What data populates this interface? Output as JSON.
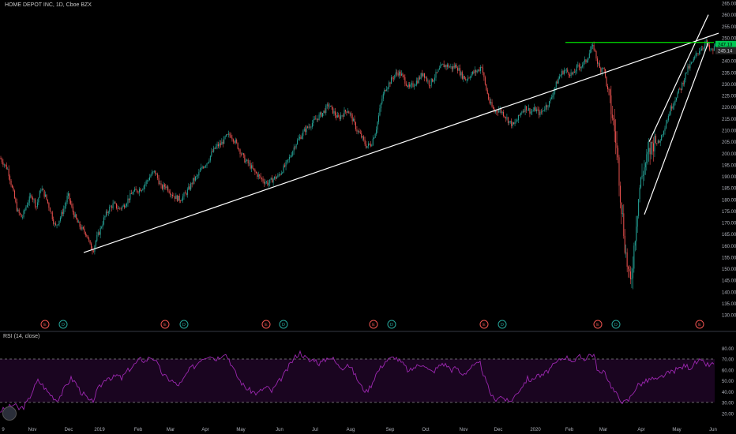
{
  "header": {
    "title": "HOME DEPOT INC, 1D, Cboe BZX"
  },
  "rsi_panel": {
    "title": "RSI (14, close)"
  },
  "colors": {
    "up": "#26a69a",
    "down": "#ef5350",
    "line": "#ffffff",
    "resistance": "#00e600",
    "rsi": "#9c27b0",
    "rsi_fill": "#1a0520"
  },
  "chart_data": {
    "type": "candlestick",
    "title": "HOME DEPOT INC, 1D, Cboe BZX",
    "y_axis": {
      "ylim": [
        128,
        265
      ],
      "ticks": [
        265,
        260,
        255,
        250,
        245,
        240,
        235,
        230,
        225,
        220,
        215,
        210,
        205,
        200,
        195,
        190,
        185,
        180,
        175,
        170,
        165,
        160,
        155,
        150,
        145,
        140,
        135,
        130
      ]
    },
    "last_price_labels": [
      "247.13",
      "245.14"
    ],
    "x_axis": {
      "ticks": [
        "9",
        "Nov",
        "Dec",
        "2019",
        "Feb",
        "Mar",
        "Apr",
        "May",
        "Jun",
        "Jul",
        "Aug",
        "Sep",
        "Oct",
        "Nov",
        "Dec",
        "2020",
        "Feb",
        "Mar",
        "Apr",
        "May",
        "Jun"
      ]
    },
    "price_path": [
      [
        0,
        198
      ],
      [
        4,
        196
      ],
      [
        10,
        193
      ],
      [
        16,
        184
      ],
      [
        22,
        175
      ],
      [
        28,
        172
      ],
      [
        34,
        178
      ],
      [
        40,
        182
      ],
      [
        46,
        177
      ],
      [
        52,
        185
      ],
      [
        58,
        181
      ],
      [
        64,
        175
      ],
      [
        70,
        168
      ],
      [
        76,
        172
      ],
      [
        82,
        177
      ],
      [
        86,
        182
      ],
      [
        92,
        175
      ],
      [
        98,
        170
      ],
      [
        104,
        167
      ],
      [
        110,
        165
      ],
      [
        114,
        160
      ],
      [
        118,
        158
      ],
      [
        122,
        163
      ],
      [
        126,
        166
      ],
      [
        132,
        172
      ],
      [
        138,
        176
      ],
      [
        144,
        178
      ],
      [
        150,
        176
      ],
      [
        156,
        177
      ],
      [
        162,
        180
      ],
      [
        168,
        183
      ],
      [
        174,
        184
      ],
      [
        180,
        185
      ],
      [
        186,
        188
      ],
      [
        192,
        191
      ],
      [
        196,
        192
      ],
      [
        200,
        189
      ],
      [
        204,
        185
      ],
      [
        210,
        186
      ],
      [
        216,
        183
      ],
      [
        222,
        181
      ],
      [
        228,
        180
      ],
      [
        234,
        182
      ],
      [
        240,
        185
      ],
      [
        244,
        188
      ],
      [
        250,
        190
      ],
      [
        256,
        194
      ],
      [
        262,
        196
      ],
      [
        268,
        200
      ],
      [
        274,
        203
      ],
      [
        280,
        204
      ],
      [
        286,
        207
      ],
      [
        292,
        208
      ],
      [
        298,
        205
      ],
      [
        304,
        201
      ],
      [
        310,
        197
      ],
      [
        316,
        195
      ],
      [
        322,
        192
      ],
      [
        328,
        190
      ],
      [
        334,
        188
      ],
      [
        340,
        187
      ],
      [
        346,
        189
      ],
      [
        352,
        190
      ],
      [
        356,
        192
      ],
      [
        362,
        195
      ],
      [
        368,
        199
      ],
      [
        374,
        204
      ],
      [
        380,
        207
      ],
      [
        386,
        210
      ],
      [
        392,
        212
      ],
      [
        398,
        214
      ],
      [
        404,
        216
      ],
      [
        410,
        218
      ],
      [
        416,
        221
      ],
      [
        422,
        218
      ],
      [
        428,
        215
      ],
      [
        434,
        217
      ],
      [
        440,
        219
      ],
      [
        446,
        215
      ],
      [
        452,
        210
      ],
      [
        458,
        207
      ],
      [
        464,
        203
      ],
      [
        470,
        204
      ],
      [
        476,
        210
      ],
      [
        480,
        217
      ],
      [
        484,
        224
      ],
      [
        488,
        228
      ],
      [
        492,
        230
      ],
      [
        496,
        232
      ],
      [
        500,
        234
      ],
      [
        504,
        235
      ],
      [
        508,
        234
      ],
      [
        512,
        232
      ],
      [
        518,
        228
      ],
      [
        524,
        230
      ],
      [
        530,
        232
      ],
      [
        536,
        235
      ],
      [
        540,
        232
      ],
      [
        544,
        230
      ],
      [
        548,
        232
      ],
      [
        552,
        234
      ],
      [
        556,
        236
      ],
      [
        560,
        238
      ],
      [
        566,
        238
      ],
      [
        572,
        237
      ],
      [
        578,
        238
      ],
      [
        584,
        234
      ],
      [
        590,
        232
      ],
      [
        596,
        234
      ],
      [
        600,
        235
      ],
      [
        606,
        236
      ],
      [
        610,
        238
      ],
      [
        614,
        230
      ],
      [
        620,
        222
      ],
      [
        626,
        218
      ],
      [
        632,
        219
      ],
      [
        638,
        217
      ],
      [
        644,
        214
      ],
      [
        650,
        212
      ],
      [
        656,
        215
      ],
      [
        660,
        218
      ],
      [
        666,
        220
      ],
      [
        672,
        218
      ],
      [
        678,
        219
      ],
      [
        684,
        217
      ],
      [
        690,
        220
      ],
      [
        696,
        222
      ],
      [
        702,
        228
      ],
      [
        708,
        233
      ],
      [
        714,
        236
      ],
      [
        720,
        235
      ],
      [
        726,
        234
      ],
      [
        730,
        237
      ],
      [
        736,
        238
      ],
      [
        742,
        240
      ],
      [
        748,
        245
      ],
      [
        752,
        246
      ],
      [
        756,
        240
      ],
      [
        760,
        236
      ],
      [
        764,
        238
      ],
      [
        768,
        230
      ],
      [
        772,
        222
      ],
      [
        776,
        215
      ],
      [
        780,
        205
      ],
      [
        783,
        195
      ],
      [
        786,
        180
      ],
      [
        789,
        170
      ],
      [
        792,
        158
      ],
      [
        795,
        150
      ],
      [
        798,
        142
      ],
      [
        800,
        148
      ],
      [
        803,
        160
      ],
      [
        806,
        172
      ],
      [
        810,
        185
      ],
      [
        814,
        192
      ],
      [
        818,
        196
      ],
      [
        822,
        200
      ],
      [
        826,
        204
      ],
      [
        830,
        206
      ],
      [
        834,
        204
      ],
      [
        838,
        208
      ],
      [
        842,
        212
      ],
      [
        846,
        216
      ],
      [
        850,
        220
      ],
      [
        854,
        223
      ],
      [
        858,
        226
      ],
      [
        862,
        228
      ],
      [
        866,
        232
      ],
      [
        870,
        236
      ],
      [
        874,
        238
      ],
      [
        878,
        240
      ],
      [
        882,
        243
      ],
      [
        886,
        245
      ],
      [
        890,
        246
      ],
      [
        894,
        248
      ],
      [
        898,
        245
      ],
      [
        902,
        244
      ],
      [
        906,
        247
      ]
    ],
    "trendlines": [
      {
        "x1": 106,
        "y1": 157,
        "x2": 910,
        "y2": 252
      },
      {
        "x1": 816,
        "y1": 173.5,
        "x2": 897,
        "y2": 248
      },
      {
        "x1": 822,
        "y1": 205,
        "x2": 897,
        "y2": 260
      }
    ],
    "resistance": {
      "value": 248,
      "x1": 716,
      "x2": 904
    },
    "earnings_markers": [
      {
        "x": 57,
        "label": "E",
        "type": "E"
      },
      {
        "x": 80,
        "label": "D",
        "type": "D"
      },
      {
        "x": 209,
        "label": "E",
        "type": "E"
      },
      {
        "x": 233,
        "label": "D",
        "type": "D"
      },
      {
        "x": 337,
        "label": "E",
        "type": "E"
      },
      {
        "x": 359,
        "label": "D",
        "type": "D"
      },
      {
        "x": 473,
        "label": "E",
        "type": "E"
      },
      {
        "x": 496,
        "label": "D",
        "type": "D"
      },
      {
        "x": 613,
        "label": "E",
        "type": "E"
      },
      {
        "x": 636,
        "label": "D",
        "type": "D"
      },
      {
        "x": 757,
        "label": "E",
        "type": "E"
      },
      {
        "x": 780,
        "label": "D",
        "type": "D"
      },
      {
        "x": 886,
        "label": "E",
        "type": "E"
      }
    ],
    "rsi": {
      "ylim": [
        14,
        86
      ],
      "ticks": [
        80,
        70,
        60,
        50,
        40,
        30,
        20
      ],
      "upper": 70,
      "lower": 30,
      "path": [
        [
          0,
          22
        ],
        [
          6,
          24
        ],
        [
          12,
          26
        ],
        [
          18,
          28
        ],
        [
          24,
          24
        ],
        [
          30,
          26
        ],
        [
          36,
          32
        ],
        [
          42,
          42
        ],
        [
          48,
          50
        ],
        [
          54,
          46
        ],
        [
          60,
          40
        ],
        [
          66,
          36
        ],
        [
          72,
          32
        ],
        [
          78,
          38
        ],
        [
          84,
          46
        ],
        [
          90,
          52
        ],
        [
          96,
          48
        ],
        [
          102,
          40
        ],
        [
          108,
          36
        ],
        [
          114,
          30
        ],
        [
          118,
          32
        ],
        [
          124,
          42
        ],
        [
          130,
          48
        ],
        [
          136,
          54
        ],
        [
          142,
          52
        ],
        [
          148,
          55
        ],
        [
          154,
          52
        ],
        [
          160,
          58
        ],
        [
          166,
          62
        ],
        [
          172,
          66
        ],
        [
          178,
          70
        ],
        [
          184,
          68
        ],
        [
          190,
          72
        ],
        [
          196,
          70
        ],
        [
          200,
          64
        ],
        [
          206,
          56
        ],
        [
          212,
          52
        ],
        [
          218,
          50
        ],
        [
          224,
          46
        ],
        [
          230,
          48
        ],
        [
          236,
          56
        ],
        [
          242,
          62
        ],
        [
          248,
          64
        ],
        [
          254,
          70
        ],
        [
          260,
          72
        ],
        [
          266,
          74
        ],
        [
          272,
          70
        ],
        [
          278,
          72
        ],
        [
          284,
          76
        ],
        [
          290,
          70
        ],
        [
          296,
          60
        ],
        [
          302,
          52
        ],
        [
          308,
          46
        ],
        [
          314,
          42
        ],
        [
          320,
          40
        ],
        [
          326,
          38
        ],
        [
          332,
          42
        ],
        [
          338,
          44
        ],
        [
          344,
          40
        ],
        [
          350,
          46
        ],
        [
          356,
          52
        ],
        [
          362,
          58
        ],
        [
          368,
          66
        ],
        [
          374,
          72
        ],
        [
          380,
          76
        ],
        [
          386,
          72
        ],
        [
          392,
          68
        ],
        [
          398,
          70
        ],
        [
          404,
          66
        ],
        [
          410,
          68
        ],
        [
          416,
          72
        ],
        [
          422,
          70
        ],
        [
          428,
          64
        ],
        [
          434,
          62
        ],
        [
          440,
          66
        ],
        [
          446,
          60
        ],
        [
          452,
          52
        ],
        [
          458,
          44
        ],
        [
          464,
          40
        ],
        [
          470,
          46
        ],
        [
          476,
          56
        ],
        [
          482,
          62
        ],
        [
          488,
          68
        ],
        [
          494,
          70
        ],
        [
          500,
          72
        ],
        [
          506,
          68
        ],
        [
          512,
          64
        ],
        [
          518,
          58
        ],
        [
          524,
          62
        ],
        [
          530,
          64
        ],
        [
          536,
          66
        ],
        [
          542,
          60
        ],
        [
          548,
          58
        ],
        [
          554,
          62
        ],
        [
          560,
          66
        ],
        [
          566,
          64
        ],
        [
          572,
          60
        ],
        [
          578,
          62
        ],
        [
          584,
          56
        ],
        [
          590,
          58
        ],
        [
          596,
          62
        ],
        [
          602,
          64
        ],
        [
          608,
          66
        ],
        [
          614,
          52
        ],
        [
          620,
          40
        ],
        [
          626,
          32
        ],
        [
          632,
          36
        ],
        [
          638,
          34
        ],
        [
          644,
          30
        ],
        [
          650,
          34
        ],
        [
          656,
          40
        ],
        [
          662,
          46
        ],
        [
          668,
          52
        ],
        [
          674,
          50
        ],
        [
          680,
          56
        ],
        [
          686,
          54
        ],
        [
          692,
          58
        ],
        [
          698,
          62
        ],
        [
          704,
          66
        ],
        [
          710,
          70
        ],
        [
          716,
          72
        ],
        [
          722,
          70
        ],
        [
          728,
          68
        ],
        [
          734,
          72
        ],
        [
          740,
          70
        ],
        [
          746,
          74
        ],
        [
          752,
          74
        ],
        [
          756,
          62
        ],
        [
          760,
          56
        ],
        [
          766,
          58
        ],
        [
          772,
          48
        ],
        [
          778,
          40
        ],
        [
          784,
          34
        ],
        [
          790,
          30
        ],
        [
          796,
          32
        ],
        [
          802,
          40
        ],
        [
          808,
          46
        ],
        [
          814,
          48
        ],
        [
          820,
          50
        ],
        [
          826,
          52
        ],
        [
          832,
          50
        ],
        [
          838,
          54
        ],
        [
          844,
          56
        ],
        [
          850,
          58
        ],
        [
          856,
          60
        ],
        [
          862,
          62
        ],
        [
          868,
          64
        ],
        [
          874,
          62
        ],
        [
          880,
          66
        ],
        [
          886,
          68
        ],
        [
          892,
          66
        ],
        [
          898,
          64
        ],
        [
          906,
          66
        ]
      ]
    }
  }
}
